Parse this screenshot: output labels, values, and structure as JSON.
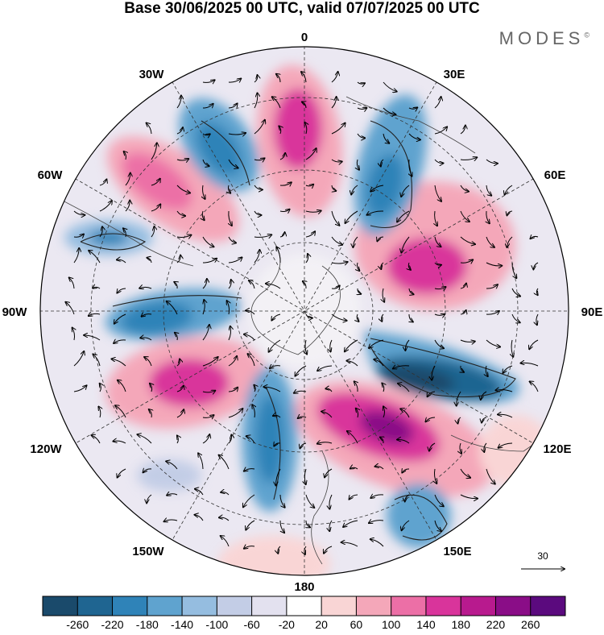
{
  "title": "Base 30/06/2025 00 UTC, valid 07/07/2025 00 UTC",
  "logo": "MODES",
  "logo_mark": "©",
  "longitude_labels": {
    "top": "0",
    "top_right": "30E",
    "right_upper": "60E",
    "right": "90E",
    "right_lower": "120E",
    "bottom_right": "150E",
    "bottom": "180",
    "bottom_left": "150W",
    "left_lower": "120W",
    "left": "90W",
    "left_upper": "60W",
    "top_left": "30W"
  },
  "reference_vector_label": "30",
  "colorbar": {
    "ticks": [
      "-260",
      "-220",
      "-180",
      "-140",
      "-100",
      "-60",
      "-20",
      "20",
      "60",
      "100",
      "140",
      "180",
      "220",
      "260"
    ],
    "colors": [
      "#1a4a6b",
      "#1f6591",
      "#2f83b8",
      "#5fa3cf",
      "#95bde0",
      "#c3cde6",
      "#e3e1ef",
      "#ffffff",
      "#f9d5d5",
      "#f4a7b9",
      "#ec6fa6",
      "#d9349b",
      "#b81a8e",
      "#8a0d87",
      "#5b0a7e"
    ]
  },
  "colors": {
    "continent": "#d9d9d9",
    "coast": "#444444",
    "grid": "#333333",
    "vector": "#000000"
  }
}
